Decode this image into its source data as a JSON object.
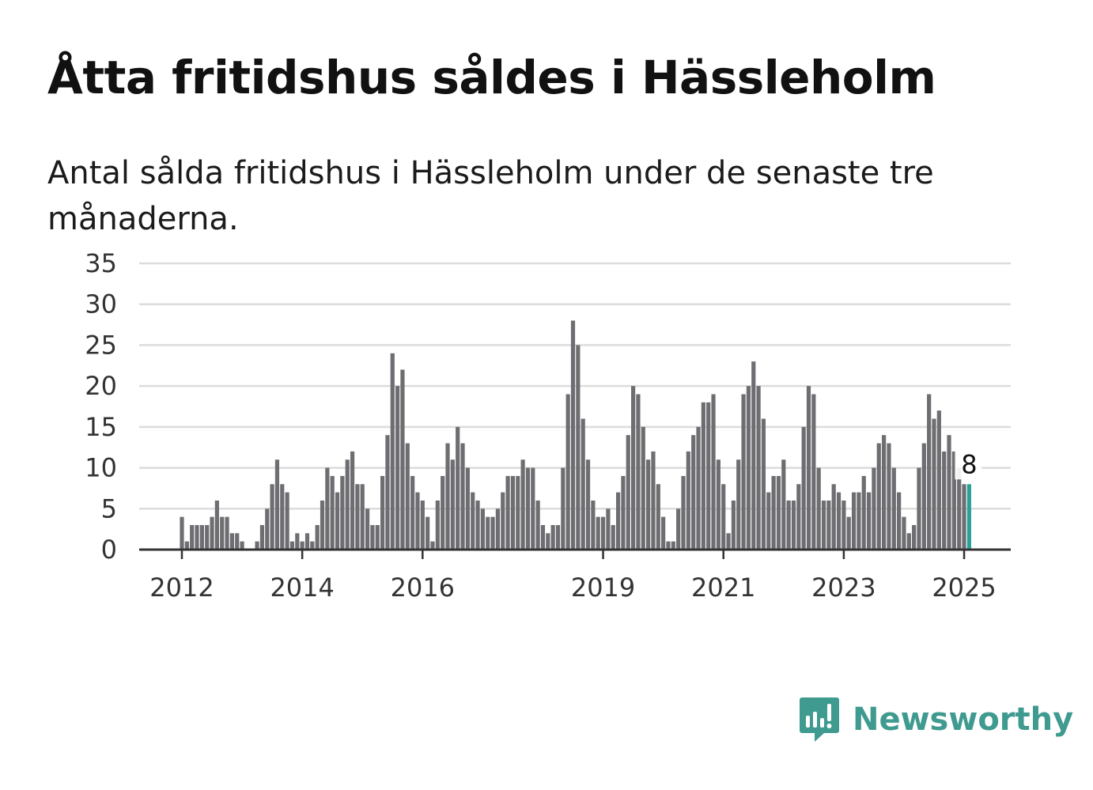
{
  "title": "Åtta fritidshus såldes i Hässleholm",
  "subtitle": "Antal sålda fritidshus i Hässleholm under de senaste tre månaderna.",
  "logo": {
    "text": "Newsworthy",
    "icon": "newsworthy-bar-chart-icon",
    "color": "#3f9a8f"
  },
  "colors": {
    "bar": "#6e6e72",
    "highlight": "#2aa198",
    "grid": "#dcdcdc",
    "axis": "#333333"
  },
  "chart_data": {
    "type": "bar",
    "xlabel": "",
    "ylabel": "",
    "ylim": [
      0,
      35
    ],
    "yticks": [
      0,
      5,
      10,
      15,
      20,
      25,
      30,
      35
    ],
    "xticks": [
      "2012",
      "2014",
      "2016",
      "2019",
      "2021",
      "2023",
      "2025"
    ],
    "grid": true,
    "start": "2012-01",
    "end": "2025-01",
    "highlight_label": "8",
    "series": [
      {
        "values": [
          4,
          1,
          3,
          3,
          3,
          3,
          4,
          6,
          4,
          4,
          2,
          2,
          1,
          0,
          0,
          1,
          3,
          5,
          8,
          11,
          8,
          7,
          1,
          2,
          1,
          2,
          1,
          3,
          6,
          10,
          9,
          7,
          9,
          11,
          12,
          8,
          8,
          5,
          3,
          3,
          9,
          14,
          24,
          20,
          22,
          13,
          9,
          7,
          6,
          4,
          1,
          6,
          9,
          13,
          11,
          15,
          13,
          10,
          7,
          6,
          5,
          4,
          4,
          5,
          7,
          9,
          9,
          9,
          11,
          10,
          10,
          6,
          3,
          2,
          3,
          3,
          10,
          19,
          28,
          25,
          16,
          11,
          6,
          4,
          4,
          5,
          3,
          7,
          9,
          14,
          20,
          19,
          15,
          11,
          12,
          8,
          4,
          1,
          1,
          5,
          9,
          12,
          14,
          15,
          18,
          18,
          19,
          11,
          8,
          2,
          6,
          11,
          19,
          20,
          23,
          20,
          16,
          7,
          9,
          9,
          11,
          6,
          6,
          8,
          15,
          20,
          19,
          10,
          6,
          6,
          8,
          7,
          6,
          4,
          7,
          7,
          9,
          7,
          10,
          13,
          14,
          13,
          10,
          7,
          4,
          2,
          3,
          10,
          13,
          19,
          16,
          17,
          12,
          14,
          12,
          10,
          8,
          8
        ]
      }
    ]
  }
}
